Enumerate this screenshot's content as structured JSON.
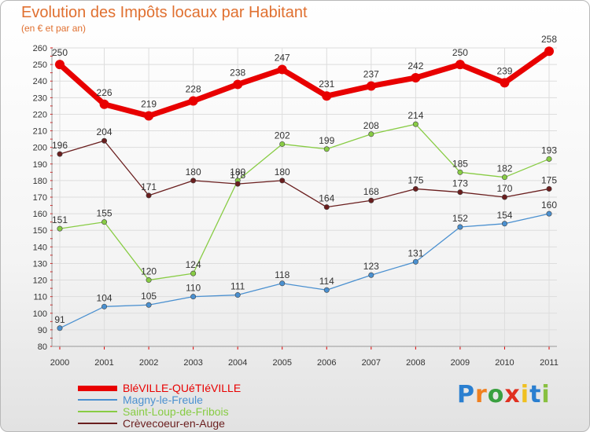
{
  "header": {
    "title": "Evolution des Impôts locaux par Habitant",
    "subtitle": "(en € et par an)"
  },
  "colors": {
    "accent": "#e07030",
    "grid": "#dddddd",
    "axis_text": "#333333",
    "red_ticks": "#e00000"
  },
  "chart_data": {
    "type": "line",
    "title": "Evolution des Impôts locaux par Habitant",
    "subtitle": "(en € et par an)",
    "xlabel": "",
    "ylabel": "",
    "x": [
      "2000",
      "2001",
      "2002",
      "2003",
      "2004",
      "2005",
      "2006",
      "2007",
      "2008",
      "2009",
      "2010",
      "2011"
    ],
    "ylim": [
      80,
      260
    ],
    "yticks": [
      80,
      90,
      100,
      110,
      120,
      130,
      140,
      150,
      160,
      170,
      180,
      190,
      200,
      210,
      220,
      230,
      240,
      250,
      260
    ],
    "grid": true,
    "legend_position": "bottom-left",
    "series": [
      {
        "name": "BléVILLE-QUéTIéVILLE",
        "color": "#e80000",
        "values": [
          250,
          226,
          219,
          228,
          238,
          247,
          231,
          237,
          242,
          250,
          239,
          258
        ]
      },
      {
        "name": "Magny-le-Freule",
        "color": "#4a90d0",
        "values": [
          91,
          104,
          105,
          110,
          111,
          118,
          114,
          123,
          131,
          152,
          154,
          160
        ]
      },
      {
        "name": "Saint-Loup-de-Fribois",
        "color": "#88cc44",
        "values": [
          151,
          155,
          120,
          124,
          180,
          202,
          199,
          208,
          214,
          185,
          182,
          193
        ]
      },
      {
        "name": "Crèvecoeur-en-Auge",
        "color": "#6a1e1e",
        "values": [
          196,
          204,
          171,
          180,
          178,
          180,
          164,
          168,
          175,
          173,
          170,
          175
        ]
      }
    ]
  },
  "brand": {
    "text": "Proxiti",
    "letter_colors": [
      "#2a7fd0",
      "#f08020",
      "#3aa040",
      "#e03020",
      "#f0c020",
      "#2a7fd0",
      "#88c040"
    ]
  }
}
